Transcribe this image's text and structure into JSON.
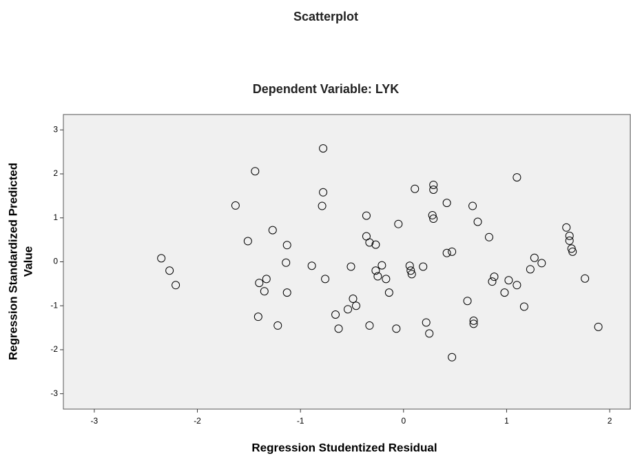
{
  "chart_data": {
    "type": "scatter",
    "title": "Scatterplot",
    "subtitle": "Dependent Variable: LYK",
    "x_label": "Regression Studentized Residual",
    "y_label": [
      "Regression Standardized Predicted",
      "Value"
    ],
    "x": [
      -2.35,
      -2.27,
      -2.21,
      -1.63,
      -1.51,
      -1.44,
      -1.4,
      -1.33,
      -1.35,
      -1.41,
      -1.27,
      -1.22,
      -1.13,
      -1.14,
      -1.13,
      -0.89,
      -0.78,
      -0.78,
      -0.79,
      -0.76,
      -0.66,
      -0.63,
      -0.54,
      -0.51,
      -0.49,
      -0.46,
      -0.36,
      -0.36,
      -0.33,
      -0.33,
      -0.27,
      -0.27,
      -0.25,
      -0.21,
      -0.17,
      -0.14,
      -0.07,
      -0.05,
      0.06,
      0.07,
      0.08,
      0.11,
      0.19,
      0.22,
      0.25,
      0.28,
      0.29,
      0.29,
      0.29,
      0.42,
      0.42,
      0.47,
      0.47,
      0.62,
      0.67,
      0.68,
      0.68,
      0.72,
      0.83,
      0.86,
      0.88,
      0.98,
      1.02,
      1.1,
      1.1,
      1.17,
      1.23,
      1.27,
      1.34,
      1.58,
      1.61,
      1.61,
      1.63,
      1.64,
      1.76,
      1.89
    ],
    "values": [
      0.08,
      -0.2,
      -0.53,
      1.28,
      0.47,
      2.06,
      -0.48,
      -0.39,
      -0.67,
      -1.25,
      0.72,
      -1.45,
      0.38,
      -0.02,
      -0.7,
      -0.09,
      2.58,
      1.58,
      1.27,
      -0.39,
      -1.2,
      -1.52,
      -1.08,
      -0.11,
      -0.84,
      -1.0,
      1.05,
      0.58,
      0.44,
      -1.45,
      0.39,
      -0.2,
      -0.33,
      -0.08,
      -0.39,
      -0.7,
      -1.52,
      0.86,
      -0.09,
      -0.2,
      -0.28,
      1.66,
      -0.11,
      -1.38,
      -1.63,
      1.06,
      1.75,
      1.64,
      0.98,
      1.34,
      0.2,
      0.23,
      -2.17,
      -0.89,
      1.27,
      -1.34,
      -1.41,
      0.91,
      0.56,
      -0.45,
      -0.34,
      -0.7,
      -0.42,
      1.92,
      -0.53,
      -1.02,
      -0.17,
      0.09,
      -0.03,
      0.78,
      0.59,
      0.48,
      0.3,
      0.23,
      -0.38,
      -1.48
    ],
    "color": "#000000",
    "xlim": [
      -3.3,
      2.2
    ],
    "ylim": [
      -3.35,
      3.35
    ],
    "xticks": [
      -3,
      -2,
      -1,
      0,
      1,
      2
    ],
    "yticks": [
      -3,
      -2,
      -1,
      0,
      1,
      2,
      3
    ]
  }
}
